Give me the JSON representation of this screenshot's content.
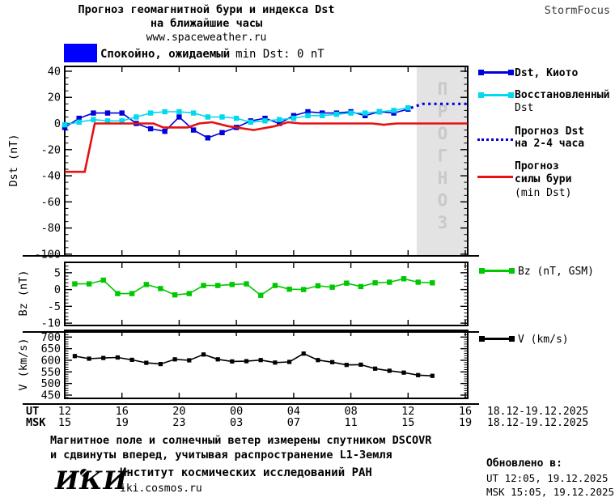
{
  "header": {
    "title_line1": "Прогноз геомагнитной бури и индекса Dst",
    "title_line2": "на ближайшие часы",
    "site": "www.spaceweather.ru",
    "brand": "StormFocus",
    "status_banner": {
      "swatch_color": "#0000ff",
      "label_ru": "Спокойно, ожидаемый",
      "label_latin": "min Dst: 0 nT"
    }
  },
  "colors": {
    "kyoto": "#0000dd",
    "restored": "#00d9ee",
    "forecast": "#0000dd",
    "storm": "#e61111",
    "bz": "#00c800",
    "v": "#000000"
  },
  "chart_data": [
    {
      "type": "line",
      "title": "Dst index and forecast",
      "ylabel": "Dst (nT)",
      "ylim": [
        -100,
        40
      ],
      "yticks": [
        40,
        20,
        0,
        -20,
        -40,
        -60,
        -80,
        -100
      ],
      "yminor": 5,
      "forecast_band": {
        "t_start": 24.6,
        "label": "ПРОГНОЗ"
      },
      "series": [
        {
          "name": "Dst, Киото",
          "color": "#0000dd",
          "marker": true,
          "t0": 0,
          "dt": 1,
          "values": [
            -3,
            4,
            8,
            8,
            8,
            0,
            -4,
            -6,
            5,
            -5,
            -11,
            -7,
            -3,
            2,
            4,
            0,
            6,
            9,
            8,
            8,
            9,
            6,
            9,
            8,
            11
          ]
        },
        {
          "name": "Восстановленный Dst",
          "color": "#00d9ee",
          "marker": true,
          "t0": 0,
          "dt": 1,
          "values": [
            -1,
            1,
            3,
            2,
            2,
            5,
            8,
            9,
            9,
            8,
            5,
            5,
            4,
            1,
            2,
            3,
            4,
            6,
            6,
            7,
            8,
            8,
            9,
            10,
            12
          ]
        },
        {
          "name": "Прогноз Dst на 2-4 часа",
          "color": "#0000dd",
          "style": "dotted",
          "points": [
            [
              24.2,
              12
            ],
            [
              25.0,
              15
            ],
            [
              28.1,
              15
            ]
          ]
        },
        {
          "name": "Прогноз силы бури (min Dst)",
          "color": "#e61111",
          "style": "thick",
          "points": [
            [
              0,
              -37
            ],
            [
              1.4,
              -37
            ],
            [
              2.1,
              0
            ],
            [
              6.2,
              0
            ],
            [
              6.9,
              -3
            ],
            [
              8.6,
              -3
            ],
            [
              9.4,
              0
            ],
            [
              10.3,
              1
            ],
            [
              11.4,
              -2
            ],
            [
              13.2,
              -5
            ],
            [
              14.7,
              -2
            ],
            [
              15.6,
              1
            ],
            [
              16.5,
              0
            ],
            [
              21.5,
              0
            ],
            [
              22.3,
              -1
            ],
            [
              23.2,
              0
            ],
            [
              28.15,
              0
            ]
          ]
        }
      ]
    },
    {
      "type": "line",
      "title": "Bz component",
      "ylabel": "Bz (nT)",
      "ylim": [
        -10,
        5
      ],
      "yticks": [
        5,
        0,
        -5,
        -10
      ],
      "yminor": 1,
      "series": [
        {
          "name": "Bz (nT, GSM)",
          "color": "#00c800",
          "marker": true,
          "t0": 0.7,
          "dt": 1,
          "values": [
            1.7,
            1.7,
            2.8,
            -1.2,
            -1.2,
            1.5,
            0.3,
            -1.6,
            -1.2,
            1.2,
            1.2,
            1.5,
            1.7,
            -1.7,
            1.2,
            0.1,
            0.0,
            1.1,
            0.7,
            1.9,
            0.9,
            2.0,
            2.2,
            3.2,
            2.2,
            2.0
          ]
        }
      ]
    },
    {
      "type": "line",
      "title": "Solar wind speed",
      "ylabel": "V (km/s)",
      "ylim": [
        450,
        700
      ],
      "yticks": [
        700,
        650,
        600,
        550,
        500,
        450
      ],
      "yminor": 10,
      "series": [
        {
          "name": "V (km/s)",
          "color": "#000000",
          "marker": true,
          "t0": 0.7,
          "dt": 1,
          "values": [
            618,
            607,
            610,
            612,
            602,
            589,
            584,
            604,
            600,
            625,
            604,
            595,
            596,
            601,
            590,
            593,
            629,
            601,
            592,
            580,
            581,
            564,
            555,
            547,
            536,
            533
          ]
        }
      ]
    }
  ],
  "xaxis": {
    "ut_row_label": "UT",
    "msk_row_label": "MSK",
    "ut_ticks": [
      "12",
      "16",
      "20",
      "00",
      "04",
      "08",
      "12",
      "16"
    ],
    "msk_ticks": [
      "15",
      "19",
      "23",
      "03",
      "07",
      "11",
      "15",
      "19"
    ],
    "ut_date": "18.12-19.12.2025",
    "msk_date": "18.12-19.12.2025"
  },
  "legend": {
    "kyoto": "Dst, Киото",
    "restored_1": "Восстановленный",
    "restored_2": "Dst",
    "forecast_1": "Прогноз Dst",
    "forecast_2": "на 2-4 часа",
    "storm_1": "Прогноз",
    "storm_2": "силы бури",
    "storm_3": "(min Dst)",
    "bz": "Bz (nT, GSM)",
    "v": "V (km/s)"
  },
  "footer": {
    "note_line1": "Магнитное поле и солнечный ветер измерены спутником DSCOVR",
    "note_line2": "и сдвинуты вперед, учитывая распространение L1-Земля",
    "logo": "ИКИ",
    "institute": "Институт космических исследований РАН",
    "site": "iki.cosmos.ru",
    "updated_label": "Обновлено в:",
    "updated_ut": "UT  12:05, 19.12.2025",
    "updated_msk": "MSK 15:05, 19.12.2025"
  }
}
